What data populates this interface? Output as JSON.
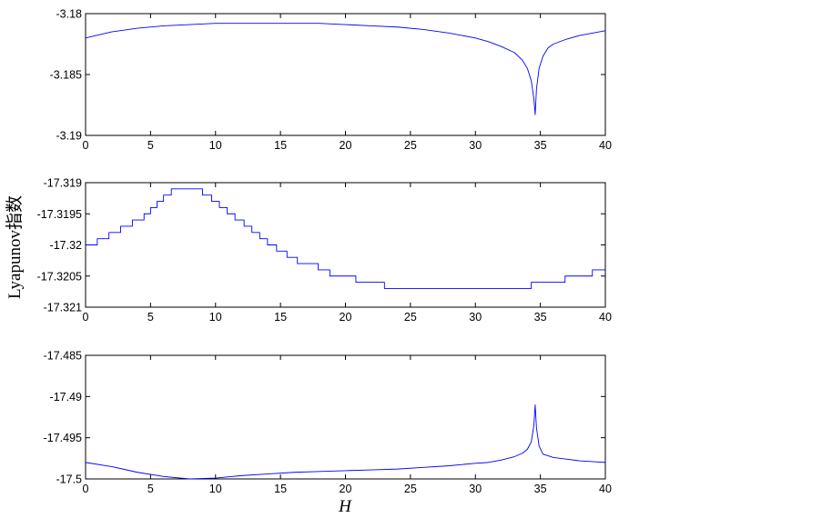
{
  "ylabel": "Lyapunov指数",
  "xlabel": "H",
  "chart_data": [
    {
      "type": "line",
      "xlim": [
        0,
        40
      ],
      "ylim": [
        -3.19,
        -3.18
      ],
      "x_ticks": [
        0,
        5,
        10,
        15,
        20,
        25,
        30,
        35,
        40
      ],
      "y_ticks": [
        "-3.19",
        "-3.185",
        "-3.18"
      ],
      "y_tick_values": [
        -3.19,
        -3.185,
        -3.18
      ],
      "color": "#0000ff",
      "series": [
        {
          "x": [
            0,
            2,
            4,
            6,
            8,
            10,
            12,
            14,
            16,
            18,
            20,
            22,
            24,
            26,
            28,
            30,
            31,
            32,
            33,
            33.6,
            34,
            34.3,
            34.5,
            34.6,
            34.7,
            34.9,
            35.2,
            35.6,
            36,
            37,
            38,
            39,
            40
          ],
          "y": [
            -3.182,
            -3.1815,
            -3.1812,
            -3.181,
            -3.1809,
            -3.1808,
            -3.1808,
            -3.1808,
            -3.1808,
            -3.1808,
            -3.1809,
            -3.181,
            -3.1811,
            -3.1813,
            -3.1816,
            -3.182,
            -3.1823,
            -3.1827,
            -3.1832,
            -3.1838,
            -3.1845,
            -3.1855,
            -3.187,
            -3.1883,
            -3.1862,
            -3.1845,
            -3.1835,
            -3.1828,
            -3.1825,
            -3.1821,
            -3.1818,
            -3.1816,
            -3.1814
          ]
        }
      ]
    },
    {
      "type": "line",
      "xlim": [
        0,
        40
      ],
      "ylim": [
        -17.321,
        -17.319
      ],
      "x_ticks": [
        0,
        5,
        10,
        15,
        20,
        25,
        30,
        35,
        40
      ],
      "y_ticks": [
        "-17.321",
        "-17.3205",
        "-17.32",
        "-17.3195",
        "-17.319"
      ],
      "y_tick_values": [
        -17.321,
        -17.3205,
        -17.32,
        -17.3195,
        -17.319
      ],
      "color": "#0000ff",
      "series": [
        {
          "x": [
            0,
            0.9,
            0.9,
            1.8,
            1.8,
            2.7,
            2.7,
            3.6,
            3.6,
            4.5,
            4.5,
            5.0,
            5.0,
            5.5,
            5.5,
            6.0,
            6.0,
            6.6,
            6.6,
            7.0,
            7.0,
            9.0,
            9.0,
            9.7,
            9.7,
            10.3,
            10.3,
            10.9,
            10.9,
            11.5,
            11.5,
            12.2,
            12.2,
            12.8,
            12.8,
            13.4,
            13.4,
            14.0,
            14.0,
            14.7,
            14.7,
            15.5,
            15.5,
            16.3,
            16.3,
            17.1,
            17.1,
            17.9,
            17.9,
            18.8,
            18.8,
            19.6,
            19.6,
            20.8,
            20.8,
            23.0,
            23.0,
            34.3,
            34.3,
            36.9,
            36.9,
            39.0,
            39.0,
            40
          ],
          "y": [
            -17.32,
            -17.32,
            -17.3199,
            -17.3199,
            -17.3198,
            -17.3198,
            -17.3197,
            -17.3197,
            -17.3196,
            -17.3196,
            -17.3195,
            -17.3195,
            -17.3194,
            -17.3194,
            -17.3193,
            -17.3193,
            -17.3192,
            -17.3192,
            -17.3191,
            -17.3191,
            -17.3191,
            -17.3191,
            -17.3192,
            -17.3192,
            -17.3193,
            -17.3193,
            -17.3194,
            -17.3194,
            -17.3195,
            -17.3195,
            -17.3196,
            -17.3196,
            -17.3197,
            -17.3197,
            -17.3198,
            -17.3198,
            -17.3199,
            -17.3199,
            -17.32,
            -17.32,
            -17.3201,
            -17.3201,
            -17.3202,
            -17.3202,
            -17.3203,
            -17.3203,
            -17.3203,
            -17.3203,
            -17.3204,
            -17.3204,
            -17.3205,
            -17.3205,
            -17.3205,
            -17.3205,
            -17.3206,
            -17.3206,
            -17.3207,
            -17.3207,
            -17.3206,
            -17.3206,
            -17.3205,
            -17.3205,
            -17.3204,
            -17.3204
          ]
        }
      ]
    },
    {
      "type": "line",
      "xlim": [
        0,
        40
      ],
      "ylim": [
        -17.5,
        -17.485
      ],
      "x_ticks": [
        0,
        5,
        10,
        15,
        20,
        25,
        30,
        35,
        40
      ],
      "y_ticks": [
        "-17.5",
        "-17.495",
        "-17.49",
        "-17.485"
      ],
      "y_tick_values": [
        -17.5,
        -17.495,
        -17.49,
        -17.485
      ],
      "color": "#0000ff",
      "series": [
        {
          "x": [
            0,
            2,
            4,
            6,
            8,
            10,
            12,
            14,
            16,
            18,
            20,
            22,
            24,
            26,
            28,
            30,
            31,
            32,
            33,
            33.6,
            34,
            34.3,
            34.5,
            34.6,
            34.7,
            34.9,
            35.2,
            35.6,
            36,
            37,
            38,
            39,
            40
          ],
          "y": [
            -17.498,
            -17.4985,
            -17.4992,
            -17.4997,
            -17.5,
            -17.4999,
            -17.4996,
            -17.4994,
            -17.4992,
            -17.4991,
            -17.499,
            -17.4989,
            -17.4988,
            -17.4986,
            -17.4984,
            -17.4981,
            -17.498,
            -17.4977,
            -17.4973,
            -17.4969,
            -17.4964,
            -17.4955,
            -17.4935,
            -17.491,
            -17.4938,
            -17.496,
            -17.497,
            -17.4972,
            -17.4974,
            -17.4976,
            -17.4978,
            -17.4979,
            -17.498
          ]
        }
      ]
    }
  ]
}
